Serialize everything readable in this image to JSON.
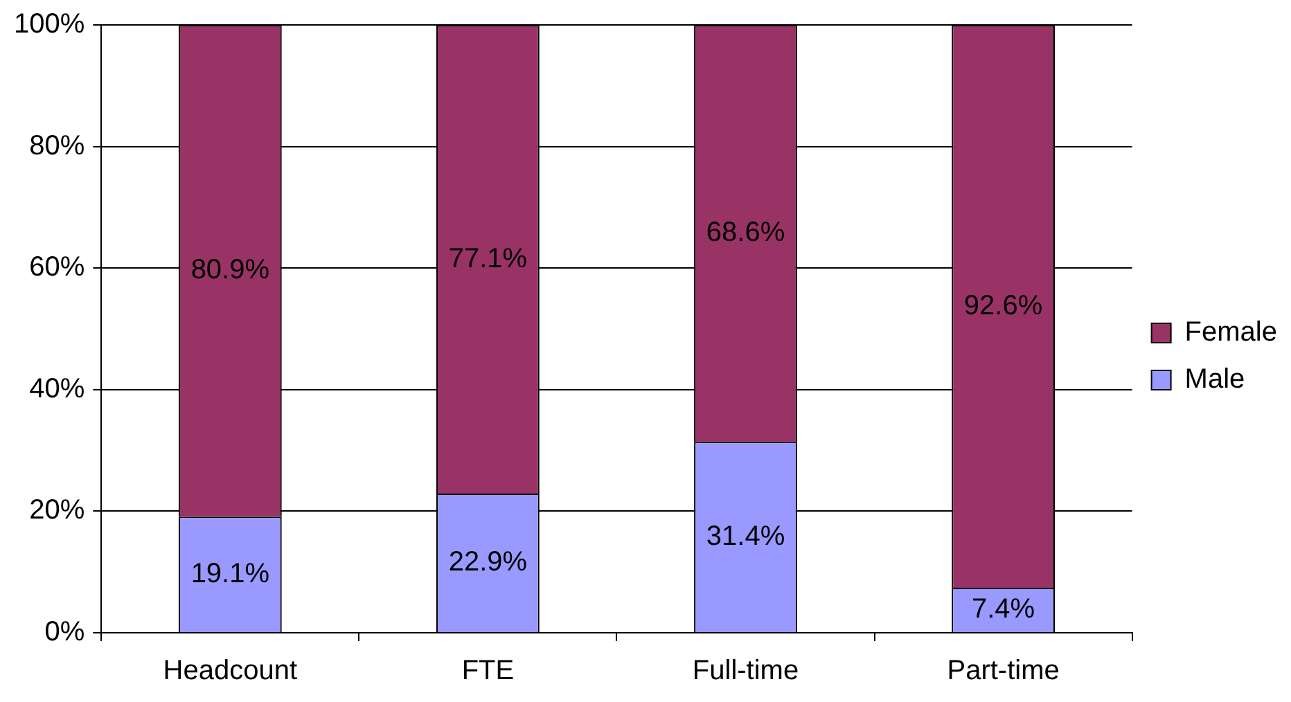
{
  "chart_data": {
    "type": "bar",
    "stacked": true,
    "categories": [
      "Headcount",
      "FTE",
      "Full-time",
      "Part-time"
    ],
    "series": [
      {
        "name": "Male",
        "color": "#9999ff",
        "values": [
          19.1,
          22.9,
          31.4,
          7.4
        ],
        "value_labels": [
          "19.1%",
          "22.9%",
          "31.4%",
          "7.4%"
        ]
      },
      {
        "name": "Female",
        "color": "#993366",
        "values": [
          80.9,
          77.1,
          68.6,
          92.6
        ],
        "value_labels": [
          "80.9%",
          "77.1%",
          "68.6%",
          "92.6%"
        ]
      }
    ],
    "ylim": [
      0,
      100
    ],
    "yticks": [
      {
        "value": 0,
        "label": "0%"
      },
      {
        "value": 20,
        "label": "20%"
      },
      {
        "value": 40,
        "label": "40%"
      },
      {
        "value": 60,
        "label": "60%"
      },
      {
        "value": 80,
        "label": "80%"
      },
      {
        "value": 100,
        "label": "100%"
      }
    ],
    "grid": "y",
    "legend": "right"
  }
}
